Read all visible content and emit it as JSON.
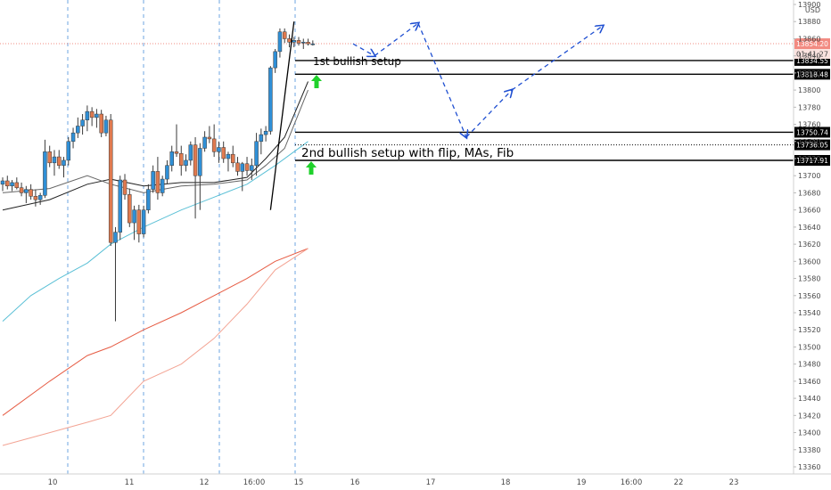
{
  "chart_data": {
    "type": "candlestick",
    "currency": "USD",
    "ylim": [
      13350,
      13910
    ],
    "y_ticks": [
      13360,
      13380,
      13400,
      13420,
      13440,
      13460,
      13480,
      13500,
      13520,
      13540,
      13560,
      13580,
      13600,
      13620,
      13640,
      13660,
      13680,
      13700,
      13720,
      13740,
      13760,
      13780,
      13800,
      13820,
      13840,
      13860,
      13880,
      13900
    ],
    "x_ticks": [
      "10",
      "11",
      "12",
      "16:00",
      "15",
      "16",
      "17",
      "18",
      "19",
      "16:00",
      "22",
      "23"
    ],
    "session_divider_labels": [
      "10",
      "11",
      "12",
      "15"
    ],
    "current_price": "13854.20",
    "countdown": "01:41:27",
    "levels": [
      {
        "value": 13834.55,
        "label": "13834.55",
        "style": "solid"
      },
      {
        "value": 13818.48,
        "label": "13818.48",
        "style": "solid"
      },
      {
        "value": 13750.74,
        "label": "13750.74",
        "style": "solid"
      },
      {
        "value": 13736.05,
        "label": "13736.05",
        "style": "dotted"
      },
      {
        "value": 13717.91,
        "label": "13717.91",
        "style": "solid"
      }
    ],
    "candles": [
      {
        "o": 13690,
        "h": 13698,
        "l": 13682,
        "c": 13694
      },
      {
        "o": 13694,
        "h": 13700,
        "l": 13684,
        "c": 13688
      },
      {
        "o": 13688,
        "h": 13695,
        "l": 13682,
        "c": 13692
      },
      {
        "o": 13692,
        "h": 13698,
        "l": 13684,
        "c": 13686
      },
      {
        "o": 13686,
        "h": 13692,
        "l": 13676,
        "c": 13680
      },
      {
        "o": 13680,
        "h": 13688,
        "l": 13668,
        "c": 13684
      },
      {
        "o": 13684,
        "h": 13690,
        "l": 13672,
        "c": 13676
      },
      {
        "o": 13676,
        "h": 13684,
        "l": 13664,
        "c": 13672
      },
      {
        "o": 13672,
        "h": 13680,
        "l": 13666,
        "c": 13677
      },
      {
        "o": 13677,
        "h": 13742,
        "l": 13674,
        "c": 13728
      },
      {
        "o": 13728,
        "h": 13735,
        "l": 13710,
        "c": 13715
      },
      {
        "o": 13715,
        "h": 13730,
        "l": 13700,
        "c": 13722
      },
      {
        "o": 13722,
        "h": 13730,
        "l": 13708,
        "c": 13712
      },
      {
        "o": 13712,
        "h": 13722,
        "l": 13698,
        "c": 13718
      },
      {
        "o": 13718,
        "h": 13745,
        "l": 13712,
        "c": 13740
      },
      {
        "o": 13740,
        "h": 13756,
        "l": 13732,
        "c": 13750
      },
      {
        "o": 13750,
        "h": 13768,
        "l": 13744,
        "c": 13758
      },
      {
        "o": 13758,
        "h": 13772,
        "l": 13748,
        "c": 13765
      },
      {
        "o": 13765,
        "h": 13782,
        "l": 13752,
        "c": 13775
      },
      {
        "o": 13775,
        "h": 13780,
        "l": 13758,
        "c": 13768
      },
      {
        "o": 13768,
        "h": 13778,
        "l": 13756,
        "c": 13772
      },
      {
        "o": 13772,
        "h": 13777,
        "l": 13745,
        "c": 13750
      },
      {
        "o": 13750,
        "h": 13770,
        "l": 13746,
        "c": 13765
      },
      {
        "o": 13765,
        "h": 13772,
        "l": 13618,
        "c": 13622
      },
      {
        "o": 13622,
        "h": 13640,
        "l": 13530,
        "c": 13634
      },
      {
        "o": 13634,
        "h": 13700,
        "l": 13625,
        "c": 13695
      },
      {
        "o": 13695,
        "h": 13702,
        "l": 13672,
        "c": 13678
      },
      {
        "o": 13678,
        "h": 13685,
        "l": 13640,
        "c": 13645
      },
      {
        "o": 13645,
        "h": 13665,
        "l": 13625,
        "c": 13660
      },
      {
        "o": 13660,
        "h": 13666,
        "l": 13622,
        "c": 13632
      },
      {
        "o": 13632,
        "h": 13665,
        "l": 13628,
        "c": 13660
      },
      {
        "o": 13660,
        "h": 13690,
        "l": 13656,
        "c": 13684
      },
      {
        "o": 13684,
        "h": 13712,
        "l": 13680,
        "c": 13705
      },
      {
        "o": 13705,
        "h": 13722,
        "l": 13672,
        "c": 13680
      },
      {
        "o": 13680,
        "h": 13700,
        "l": 13676,
        "c": 13696
      },
      {
        "o": 13696,
        "h": 13718,
        "l": 13690,
        "c": 13712
      },
      {
        "o": 13712,
        "h": 13735,
        "l": 13705,
        "c": 13728
      },
      {
        "o": 13728,
        "h": 13760,
        "l": 13722,
        "c": 13726
      },
      {
        "o": 13726,
        "h": 13735,
        "l": 13700,
        "c": 13712
      },
      {
        "o": 13712,
        "h": 13725,
        "l": 13705,
        "c": 13718
      },
      {
        "o": 13718,
        "h": 13740,
        "l": 13712,
        "c": 13736
      },
      {
        "o": 13736,
        "h": 13745,
        "l": 13650,
        "c": 13700
      },
      {
        "o": 13700,
        "h": 13738,
        "l": 13660,
        "c": 13732
      },
      {
        "o": 13732,
        "h": 13752,
        "l": 13728,
        "c": 13745
      },
      {
        "o": 13745,
        "h": 13758,
        "l": 13738,
        "c": 13743
      },
      {
        "o": 13743,
        "h": 13760,
        "l": 13722,
        "c": 13728
      },
      {
        "o": 13728,
        "h": 13740,
        "l": 13715,
        "c": 13733
      },
      {
        "o": 13733,
        "h": 13740,
        "l": 13715,
        "c": 13720
      },
      {
        "o": 13720,
        "h": 13728,
        "l": 13705,
        "c": 13725
      },
      {
        "o": 13725,
        "h": 13735,
        "l": 13710,
        "c": 13715
      },
      {
        "o": 13715,
        "h": 13722,
        "l": 13700,
        "c": 13705
      },
      {
        "o": 13705,
        "h": 13716,
        "l": 13682,
        "c": 13714
      },
      {
        "o": 13714,
        "h": 13722,
        "l": 13700,
        "c": 13706
      },
      {
        "o": 13706,
        "h": 13720,
        "l": 13695,
        "c": 13712
      },
      {
        "o": 13712,
        "h": 13750,
        "l": 13700,
        "c": 13740
      },
      {
        "o": 13740,
        "h": 13755,
        "l": 13725,
        "c": 13748
      },
      {
        "o": 13748,
        "h": 13758,
        "l": 13740,
        "c": 13752
      },
      {
        "o": 13752,
        "h": 13828,
        "l": 13748,
        "c": 13826
      },
      {
        "o": 13826,
        "h": 13848,
        "l": 13820,
        "c": 13845
      },
      {
        "o": 13845,
        "h": 13872,
        "l": 13838,
        "c": 13868
      },
      {
        "o": 13868,
        "h": 13872,
        "l": 13855,
        "c": 13860
      },
      {
        "o": 13860,
        "h": 13865,
        "l": 13850,
        "c": 13856
      },
      {
        "o": 13856,
        "h": 13862,
        "l": 13850,
        "c": 13858
      },
      {
        "o": 13858,
        "h": 13862,
        "l": 13852,
        "c": 13855
      },
      {
        "o": 13855,
        "h": 13860,
        "l": 13848,
        "c": 13856
      },
      {
        "o": 13856,
        "h": 13860,
        "l": 13852,
        "c": 13854
      },
      {
        "o": 13854,
        "h": 13858,
        "l": 13852,
        "c": 13854
      }
    ],
    "moving_averages": [
      {
        "color": "#222222",
        "points": [
          [
            0,
            13660
          ],
          [
            10,
            13672
          ],
          [
            18,
            13690
          ],
          [
            23,
            13696
          ],
          [
            30,
            13688
          ],
          [
            38,
            13692
          ],
          [
            45,
            13692
          ],
          [
            52,
            13698
          ],
          [
            56,
            13720
          ],
          [
            60,
            13745
          ],
          [
            65,
            13810
          ]
        ]
      },
      {
        "color": "#666666",
        "points": [
          [
            0,
            13680
          ],
          [
            10,
            13685
          ],
          [
            18,
            13700
          ],
          [
            23,
            13690
          ],
          [
            30,
            13680
          ],
          [
            38,
            13688
          ],
          [
            45,
            13690
          ],
          [
            52,
            13695
          ],
          [
            56,
            13712
          ],
          [
            60,
            13732
          ],
          [
            65,
            13800
          ]
        ]
      },
      {
        "color": "#5bc0d6",
        "points": [
          [
            0,
            13530
          ],
          [
            6,
            13560
          ],
          [
            12,
            13580
          ],
          [
            18,
            13598
          ],
          [
            23,
            13620
          ],
          [
            30,
            13640
          ],
          [
            38,
            13660
          ],
          [
            45,
            13675
          ],
          [
            52,
            13690
          ],
          [
            58,
            13712
          ],
          [
            65,
            13740
          ]
        ]
      },
      {
        "color": "#e65c44",
        "points": [
          [
            0,
            13420
          ],
          [
            10,
            13460
          ],
          [
            18,
            13490
          ],
          [
            23,
            13500
          ],
          [
            30,
            13520
          ],
          [
            38,
            13540
          ],
          [
            45,
            13560
          ],
          [
            52,
            13580
          ],
          [
            58,
            13600
          ],
          [
            65,
            13615
          ]
        ]
      },
      {
        "color": "#f3a494",
        "points": [
          [
            0,
            13385
          ],
          [
            10,
            13400
          ],
          [
            18,
            13412
          ],
          [
            23,
            13420
          ],
          [
            30,
            13460
          ],
          [
            38,
            13480
          ],
          [
            45,
            13510
          ],
          [
            52,
            13550
          ],
          [
            58,
            13590
          ],
          [
            65,
            13615
          ]
        ]
      }
    ],
    "projection_path": [
      [
        13854,
        66
      ],
      [
        13840,
        70
      ],
      [
        13878,
        77
      ],
      [
        13745,
        87
      ],
      [
        13800,
        94
      ],
      [
        13875,
        105
      ]
    ],
    "annotations": [
      {
        "text": "1st bullish setup",
        "anchor_level": 13834.55
      },
      {
        "text": "2nd bullish setup with flip, MAs, Fib",
        "anchor_level": 13736.05
      }
    ]
  }
}
